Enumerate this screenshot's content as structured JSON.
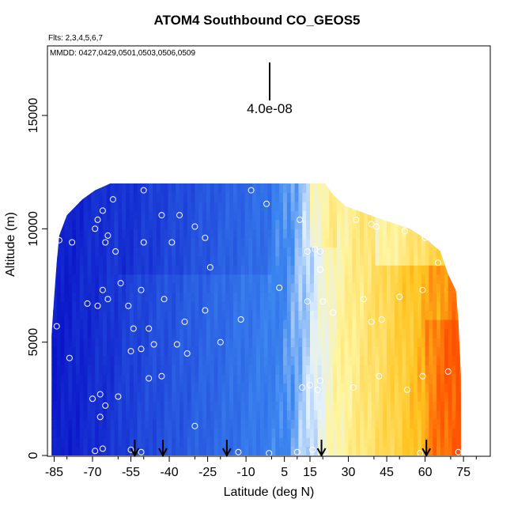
{
  "chart_data": {
    "type": "heatmap",
    "title": "ATOM4 Southbound CO_GEOS5",
    "annotations": {
      "flights": "Flts: 2,3,4,5,6,7",
      "dates": "MMDD: 0427,0429,0501,0503,0506,0509",
      "scale_value": "4.0e-08"
    },
    "xlabel": "Latitude (deg N)",
    "ylabel": "Altitude (m)",
    "xlim": [
      -87,
      83
    ],
    "ylim": [
      0,
      18000
    ],
    "x_ticks": [
      -85,
      -70,
      -55,
      -40,
      -25,
      -10,
      5,
      15,
      30,
      45,
      60,
      75
    ],
    "y_ticks": [
      0,
      5000,
      10000,
      15000
    ],
    "colors": {
      "low": "#0a14c8",
      "mid_low": "#3a82f0",
      "mid": "#ffffff",
      "mid_high": "#fff08c",
      "high": "#ff5a00"
    },
    "profile_markers_lat": [
      -53.5,
      -42.5,
      -17.5,
      19.5,
      60.5
    ],
    "sample_points": [
      [
        -69,
        200
      ],
      [
        -66,
        300
      ],
      [
        -55,
        250
      ],
      [
        -51,
        150
      ],
      [
        -30,
        1300
      ],
      [
        -13,
        150
      ],
      [
        -1,
        100
      ],
      [
        10,
        150
      ],
      [
        16,
        250
      ],
      [
        21,
        150
      ],
      [
        58,
        100
      ],
      [
        73,
        150
      ],
      [
        -70,
        2500
      ],
      [
        -67,
        2700
      ],
      [
        -65,
        2200
      ],
      [
        -60,
        2600
      ],
      [
        -67,
        1700
      ],
      [
        -48,
        3400
      ],
      [
        -43,
        3500
      ],
      [
        -55,
        4600
      ],
      [
        -51,
        4700
      ],
      [
        -46,
        4900
      ],
      [
        -37,
        4900
      ],
      [
        -33,
        4500
      ],
      [
        -20,
        5000
      ],
      [
        12,
        3000
      ],
      [
        15,
        3100
      ],
      [
        18,
        2900
      ],
      [
        19,
        3300
      ],
      [
        24,
        6300
      ],
      [
        32,
        3000
      ],
      [
        42,
        3500
      ],
      [
        53,
        2900
      ],
      [
        59,
        3500
      ],
      [
        69,
        3700
      ],
      [
        -79,
        4300
      ],
      [
        -84,
        5700
      ],
      [
        -54,
        5600
      ],
      [
        -48,
        5600
      ],
      [
        -34,
        5900
      ],
      [
        -26,
        6400
      ],
      [
        -12,
        6000
      ],
      [
        -72,
        6700
      ],
      [
        -68,
        6600
      ],
      [
        -64,
        6900
      ],
      [
        -56,
        6600
      ],
      [
        -51,
        7300
      ],
      [
        -42,
        6900
      ],
      [
        3,
        7400
      ],
      [
        14,
        6800
      ],
      [
        20,
        6800
      ],
      [
        36,
        6900
      ],
      [
        39,
        5900
      ],
      [
        43,
        6000
      ],
      [
        50,
        7000
      ],
      [
        59,
        7300
      ],
      [
        74,
        7300
      ],
      [
        -66,
        7300
      ],
      [
        -59,
        7600
      ],
      [
        -24,
        8300
      ],
      [
        19,
        8200
      ],
      [
        -61,
        9000
      ],
      [
        -65,
        9400
      ],
      [
        -78,
        9400
      ],
      [
        -83,
        9500
      ],
      [
        -64,
        9700
      ],
      [
        -69,
        10000
      ],
      [
        -68,
        10400
      ],
      [
        -66,
        10800
      ],
      [
        -62,
        11300
      ],
      [
        -50,
        11700
      ],
      [
        -43,
        10600
      ],
      [
        -36,
        10600
      ],
      [
        -30,
        10100
      ],
      [
        -26,
        9600
      ],
      [
        -50,
        9400
      ],
      [
        -39,
        9400
      ],
      [
        -8,
        11700
      ],
      [
        -2,
        11100
      ],
      [
        11,
        10400
      ],
      [
        14,
        9000
      ],
      [
        17,
        9100
      ],
      [
        19,
        9000
      ],
      [
        26,
        11700
      ],
      [
        33,
        10400
      ],
      [
        39,
        10200
      ],
      [
        41,
        10100
      ],
      [
        52,
        9900
      ],
      [
        60,
        9600
      ],
      [
        65,
        8500
      ]
    ]
  }
}
